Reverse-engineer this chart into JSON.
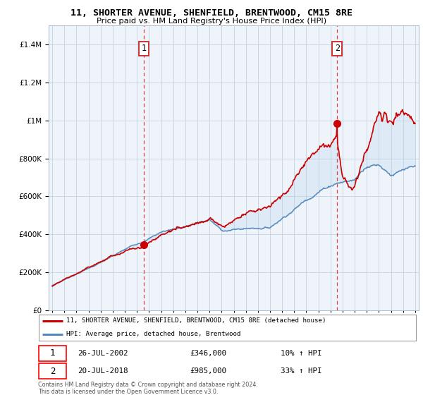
{
  "title": "11, SHORTER AVENUE, SHENFIELD, BRENTWOOD, CM15 8RE",
  "subtitle": "Price paid vs. HM Land Registry's House Price Index (HPI)",
  "sale1_date": "26-JUL-2002",
  "sale1_price": 346000,
  "sale1_hpi": "10% ↑ HPI",
  "sale1_x": 2002.57,
  "sale2_date": "20-JUL-2018",
  "sale2_price": 985000,
  "sale2_hpi": "33% ↑ HPI",
  "sale2_x": 2018.55,
  "legend_label1": "11, SHORTER AVENUE, SHENFIELD, BRENTWOOD, CM15 8RE (detached house)",
  "legend_label2": "HPI: Average price, detached house, Brentwood",
  "footer": "Contains HM Land Registry data © Crown copyright and database right 2024.\nThis data is licensed under the Open Government Licence v3.0.",
  "line1_color": "#cc0000",
  "line2_color": "#5588bb",
  "fill_color": "#d8e8f5",
  "vline_color": "#dd4444",
  "bg_color": "#eef4fa",
  "ylim": [
    0,
    1500000
  ],
  "xlim": [
    1994.7,
    2025.3
  ]
}
